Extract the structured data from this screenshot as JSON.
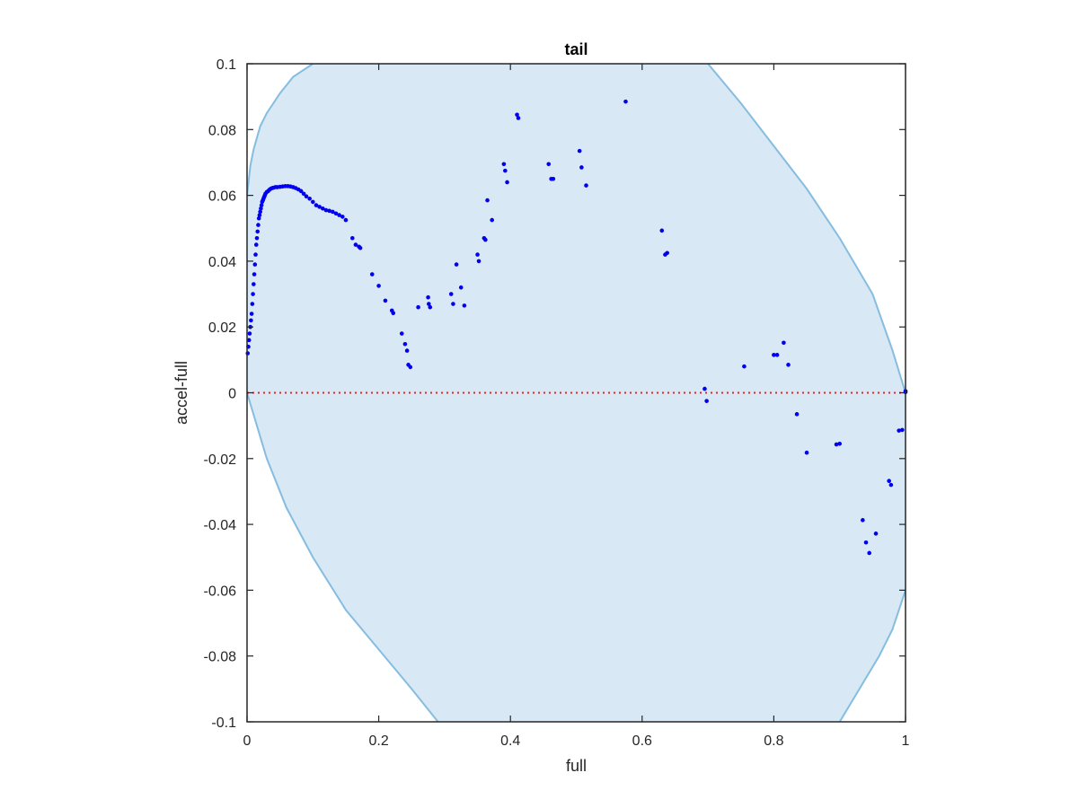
{
  "chart_data": {
    "type": "scatter",
    "title": "tail",
    "xlabel": "full",
    "ylabel": "accel-full",
    "xlim": [
      0,
      1
    ],
    "ylim": [
      -0.1,
      0.1
    ],
    "xticks": [
      0,
      0.2,
      0.4,
      0.6,
      0.8,
      1
    ],
    "xtick_labels": [
      "0",
      "0.2",
      "0.4",
      "0.6",
      "0.8",
      "1"
    ],
    "yticks": [
      -0.1,
      -0.08,
      -0.06,
      -0.04,
      -0.02,
      0,
      0.02,
      0.04,
      0.06,
      0.08,
      0.1
    ],
    "ytick_labels": [
      "-0.1",
      "-0.08",
      "-0.06",
      "-0.04",
      "-0.02",
      "0",
      "0.02",
      "0.04",
      "0.06",
      "0.08",
      "0.1"
    ],
    "grid": false,
    "colors": {
      "points": "#0000ee",
      "zero_line": "#ee2222",
      "region_fill": "#d8e8f4",
      "region_edge": "#85bde0",
      "axes": "#262626"
    },
    "region_boundary": {
      "upper": [
        [
          0,
          0.06
        ],
        [
          0.005,
          0.069
        ],
        [
          0.01,
          0.074
        ],
        [
          0.02,
          0.081
        ],
        [
          0.03,
          0.085
        ],
        [
          0.05,
          0.091
        ],
        [
          0.07,
          0.096
        ],
        [
          0.1,
          0.1
        ]
      ],
      "upper_right": [
        [
          0.7,
          0.1
        ],
        [
          0.75,
          0.088
        ],
        [
          0.8,
          0.075
        ],
        [
          0.85,
          0.062
        ],
        [
          0.9,
          0.047
        ],
        [
          0.95,
          0.03
        ],
        [
          0.98,
          0.013
        ],
        [
          1.0,
          0.0
        ]
      ],
      "lower_left": [
        [
          0,
          0.0
        ],
        [
          0.03,
          -0.02
        ],
        [
          0.06,
          -0.035
        ],
        [
          0.1,
          -0.05
        ],
        [
          0.15,
          -0.066
        ],
        [
          0.2,
          -0.078
        ],
        [
          0.25,
          -0.09
        ],
        [
          0.29,
          -0.1
        ]
      ],
      "lower_right": [
        [
          0.9,
          -0.1
        ],
        [
          0.93,
          -0.09
        ],
        [
          0.96,
          -0.08
        ],
        [
          0.98,
          -0.072
        ],
        [
          0.99,
          -0.066
        ],
        [
          1.0,
          -0.06
        ]
      ]
    },
    "zero_line_y": 0,
    "series": [
      {
        "x": [
          0.001,
          0.002,
          0.003,
          0.004,
          0.005,
          0.006,
          0.007,
          0.008,
          0.009,
          0.01,
          0.011,
          0.012,
          0.013,
          0.014,
          0.015,
          0.016,
          0.017,
          0.018,
          0.019,
          0.02,
          0.021,
          0.022,
          0.023,
          0.024,
          0.025,
          0.026,
          0.027,
          0.028,
          0.03,
          0.032,
          0.034,
          0.036,
          0.038,
          0.04,
          0.043,
          0.046,
          0.05,
          0.054,
          0.058,
          0.062,
          0.066,
          0.07,
          0.074,
          0.078,
          0.082,
          0.086,
          0.09,
          0.095,
          0.1,
          0.105,
          0.11,
          0.115,
          0.12,
          0.125,
          0.13,
          0.135,
          0.14,
          0.145,
          0.15,
          0.16,
          0.165,
          0.17,
          0.172,
          0.19,
          0.2,
          0.21,
          0.22,
          0.222,
          0.235,
          0.24,
          0.243,
          0.245,
          0.248,
          0.26,
          0.275,
          0.276,
          0.278,
          0.31,
          0.313,
          0.318,
          0.325,
          0.33,
          0.35,
          0.352,
          0.36,
          0.362,
          0.365,
          0.372,
          0.39,
          0.392,
          0.395,
          0.41,
          0.412,
          0.458,
          0.462,
          0.465,
          0.505,
          0.508,
          0.515,
          0.575,
          0.63,
          0.635,
          0.638,
          0.695,
          0.698,
          0.755,
          0.8,
          0.805,
          0.815,
          0.822,
          0.835,
          0.85,
          0.895,
          0.9,
          0.935,
          0.94,
          0.945,
          0.955,
          0.975,
          0.978,
          0.99,
          0.995,
          1.0,
          1.0
        ],
        "y": [
          0.012,
          0.014,
          0.016,
          0.018,
          0.02,
          0.022,
          0.024,
          0.027,
          0.03,
          0.033,
          0.036,
          0.039,
          0.042,
          0.045,
          0.047,
          0.049,
          0.051,
          0.053,
          0.054,
          0.055,
          0.056,
          0.057,
          0.058,
          0.0585,
          0.059,
          0.0595,
          0.06,
          0.0605,
          0.061,
          0.0613,
          0.0617,
          0.062,
          0.0622,
          0.0623,
          0.0625,
          0.0625,
          0.0626,
          0.0627,
          0.0628,
          0.0628,
          0.0627,
          0.0625,
          0.0622,
          0.0618,
          0.0613,
          0.0605,
          0.0597,
          0.059,
          0.058,
          0.057,
          0.0565,
          0.056,
          0.0555,
          0.0553,
          0.055,
          0.0545,
          0.054,
          0.0535,
          0.0525,
          0.047,
          0.045,
          0.0444,
          0.044,
          0.036,
          0.0325,
          0.028,
          0.025,
          0.0242,
          0.018,
          0.0148,
          0.0128,
          0.0085,
          0.0078,
          0.026,
          0.029,
          0.027,
          0.026,
          0.03,
          0.027,
          0.039,
          0.032,
          0.0265,
          0.042,
          0.04,
          0.047,
          0.0465,
          0.0585,
          0.0525,
          0.0695,
          0.0675,
          0.064,
          0.0845,
          0.0835,
          0.0695,
          0.065,
          0.065,
          0.0735,
          0.0685,
          0.063,
          0.0885,
          0.0493,
          0.042,
          0.0425,
          0.0012,
          -0.0025,
          0.008,
          0.0115,
          0.0115,
          0.0152,
          0.0085,
          -0.0065,
          -0.0182,
          -0.0157,
          -0.0155,
          -0.0387,
          -0.0455,
          -0.0487,
          -0.0428,
          -0.0268,
          -0.028,
          -0.0115,
          -0.0113,
          0.0005,
          0.0002
        ]
      }
    ]
  }
}
